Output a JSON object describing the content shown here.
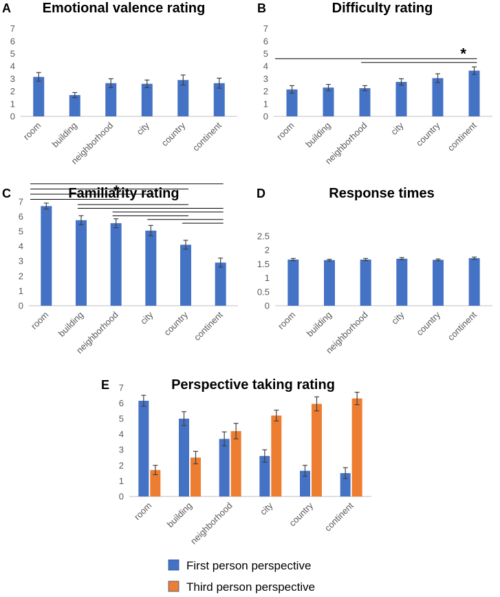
{
  "colors": {
    "blue": "#4472C4",
    "orange": "#ED7D31",
    "error": "#404040",
    "axis": "#bfbfbf"
  },
  "chart_data": [
    {
      "id": "A",
      "panel_label": "A",
      "type": "bar",
      "title": "Emotional valence rating",
      "categories": [
        "room",
        "building",
        "neighborhood",
        "city",
        "country",
        "continent"
      ],
      "yticks": [
        0,
        1,
        2,
        3,
        4,
        5,
        6,
        7
      ],
      "ylim": [
        0,
        7
      ],
      "series": [
        {
          "name": "Emotional valence",
          "color": "#4472C4",
          "values": [
            3.15,
            1.7,
            2.65,
            2.6,
            2.9,
            2.65
          ],
          "errors": [
            0.35,
            0.2,
            0.35,
            0.3,
            0.4,
            0.4
          ]
        }
      ],
      "significance": []
    },
    {
      "id": "B",
      "panel_label": "B",
      "type": "bar",
      "title": "Difficulty rating",
      "categories": [
        "room",
        "building",
        "neighborhood",
        "city",
        "country",
        "continent"
      ],
      "yticks": [
        0,
        1,
        2,
        3,
        4,
        5,
        6,
        7
      ],
      "ylim": [
        0,
        7
      ],
      "series": [
        {
          "name": "Difficulty",
          "color": "#4472C4",
          "values": [
            2.15,
            2.3,
            2.25,
            2.75,
            3.05,
            3.65
          ],
          "errors": [
            0.3,
            0.25,
            0.2,
            0.25,
            0.35,
            0.3
          ]
        }
      ],
      "significance": [
        {
          "from": 0,
          "to": 5,
          "level": 4.6
        },
        {
          "from": 2,
          "to": 5,
          "level": 4.3
        }
      ],
      "star": "*"
    },
    {
      "id": "C",
      "panel_label": "C",
      "type": "bar",
      "title": "Familiarity rating",
      "categories": [
        "room",
        "building",
        "neighborhood",
        "city",
        "country",
        "continent"
      ],
      "yticks": [
        0,
        1,
        2,
        3,
        4,
        5,
        6,
        7
      ],
      "ylim": [
        0,
        7
      ],
      "series": [
        {
          "name": "Familiarity",
          "color": "#4472C4",
          "values": [
            6.7,
            5.75,
            5.55,
            5.05,
            4.1,
            2.9
          ],
          "errors": [
            0.2,
            0.3,
            0.3,
            0.35,
            0.3,
            0.3
          ]
        }
      ],
      "significance": [
        {
          "from": 0,
          "to": 5,
          "level": 8.2
        },
        {
          "from": 0,
          "to": 4,
          "level": 7.85
        },
        {
          "from": 0,
          "to": 3,
          "level": 7.5
        },
        {
          "from": 0,
          "to": 2,
          "level": 7.15
        },
        {
          "from": 1,
          "to": 4,
          "level": 6.8
        },
        {
          "from": 1,
          "to": 5,
          "level": 6.55
        },
        {
          "from": 2,
          "to": 5,
          "level": 6.3
        },
        {
          "from": 2,
          "to": 4,
          "level": 6.05
        },
        {
          "from": 3,
          "to": 5,
          "level": 5.8
        },
        {
          "from": 4,
          "to": 5,
          "level": 5.55
        }
      ],
      "star": "*"
    },
    {
      "id": "D",
      "panel_label": "D",
      "type": "bar",
      "title": "Response times",
      "categories": [
        "room",
        "building",
        "neighborhood",
        "city",
        "country",
        "continent"
      ],
      "yticks": [
        "0",
        "0.5",
        "1",
        "1.5",
        "2",
        "2.5"
      ],
      "ylim": [
        0,
        2.5
      ],
      "series": [
        {
          "name": "Response time",
          "color": "#4472C4",
          "values": [
            1.66,
            1.64,
            1.66,
            1.69,
            1.65,
            1.71
          ],
          "errors": [
            0.04,
            0.03,
            0.04,
            0.04,
            0.03,
            0.04
          ]
        }
      ],
      "significance": []
    },
    {
      "id": "E",
      "panel_label": "E",
      "type": "bar",
      "title": "Perspective taking rating",
      "categories": [
        "room",
        "building",
        "neighborhood",
        "city",
        "country",
        "continent"
      ],
      "yticks": [
        0,
        1,
        2,
        3,
        4,
        5,
        6,
        7
      ],
      "ylim": [
        0,
        7
      ],
      "series": [
        {
          "name": "First person perspective",
          "color": "#4472C4",
          "values": [
            6.15,
            5.0,
            3.7,
            2.6,
            1.65,
            1.5
          ],
          "errors": [
            0.35,
            0.45,
            0.45,
            0.4,
            0.35,
            0.35
          ]
        },
        {
          "name": "Third person perspective",
          "color": "#ED7D31",
          "values": [
            1.7,
            2.5,
            4.2,
            5.2,
            5.95,
            6.3
          ],
          "errors": [
            0.3,
            0.4,
            0.5,
            0.35,
            0.45,
            0.4
          ]
        }
      ],
      "significance": []
    }
  ],
  "legend": {
    "items": [
      {
        "label": "First person perspective",
        "color": "#4472C4"
      },
      {
        "label": "Third person perspective",
        "color": "#ED7D31"
      }
    ]
  }
}
